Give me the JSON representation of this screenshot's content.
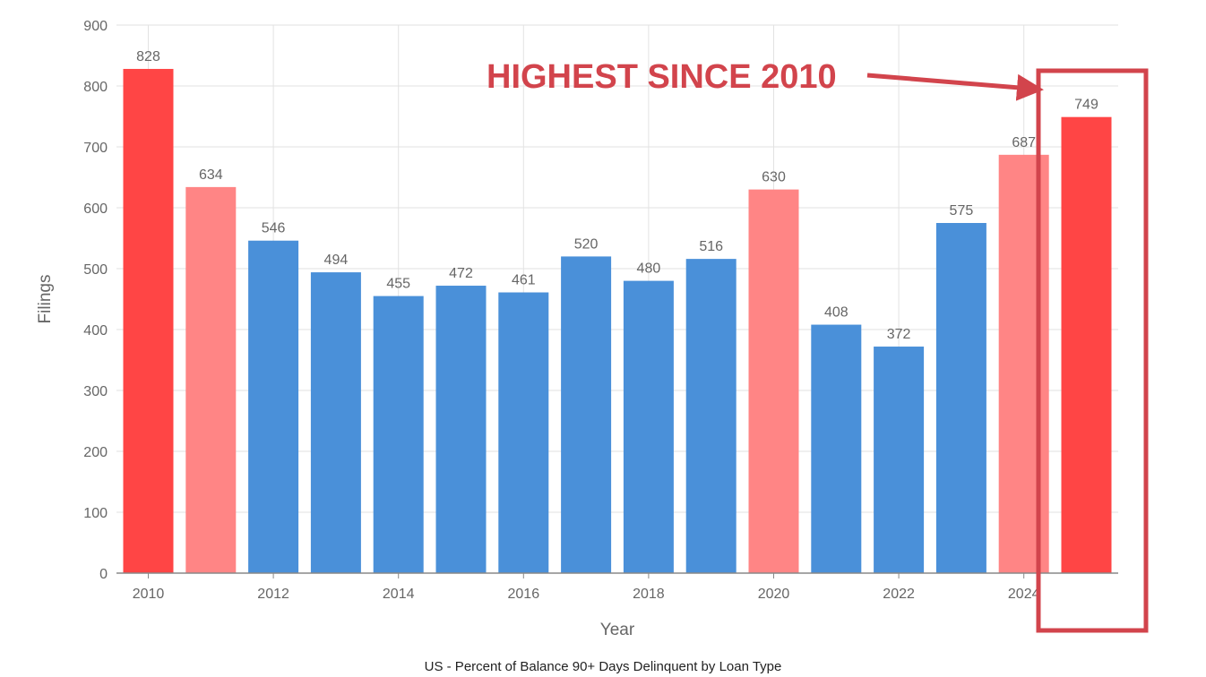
{
  "chart_data": {
    "type": "bar",
    "title": "",
    "xlabel": "Year",
    "ylabel": "Filings",
    "ylim": [
      0,
      900
    ],
    "yticks": [
      0,
      100,
      200,
      300,
      400,
      500,
      600,
      700,
      800,
      900
    ],
    "xtick_labels": [
      "2010",
      "2012",
      "2014",
      "2016",
      "2018",
      "2020",
      "2022",
      "2024"
    ],
    "categories": [
      "2010",
      "2011",
      "2012",
      "2013",
      "2014",
      "2015",
      "2016",
      "2017",
      "2018",
      "2019",
      "2020",
      "2021",
      "2022",
      "2023",
      "2024",
      "2025"
    ],
    "values": [
      828,
      634,
      546,
      494,
      455,
      472,
      461,
      520,
      480,
      516,
      630,
      408,
      372,
      575,
      687,
      749
    ],
    "grid": true,
    "colors": {
      "blue": "#4a90d9",
      "red": "#ff4545",
      "light_red": "#ff8585",
      "annotation": "#d2444c"
    },
    "bar_colors": [
      "red",
      "light_red",
      "blue",
      "blue",
      "blue",
      "blue",
      "blue",
      "blue",
      "blue",
      "blue",
      "light_red",
      "blue",
      "blue",
      "blue",
      "light_red",
      "red"
    ],
    "annotation": {
      "text": "HIGHEST SINCE 2010",
      "target_category": "2025"
    }
  },
  "caption": "US - Percent of Balance 90+ Days Delinquent by Loan Type"
}
